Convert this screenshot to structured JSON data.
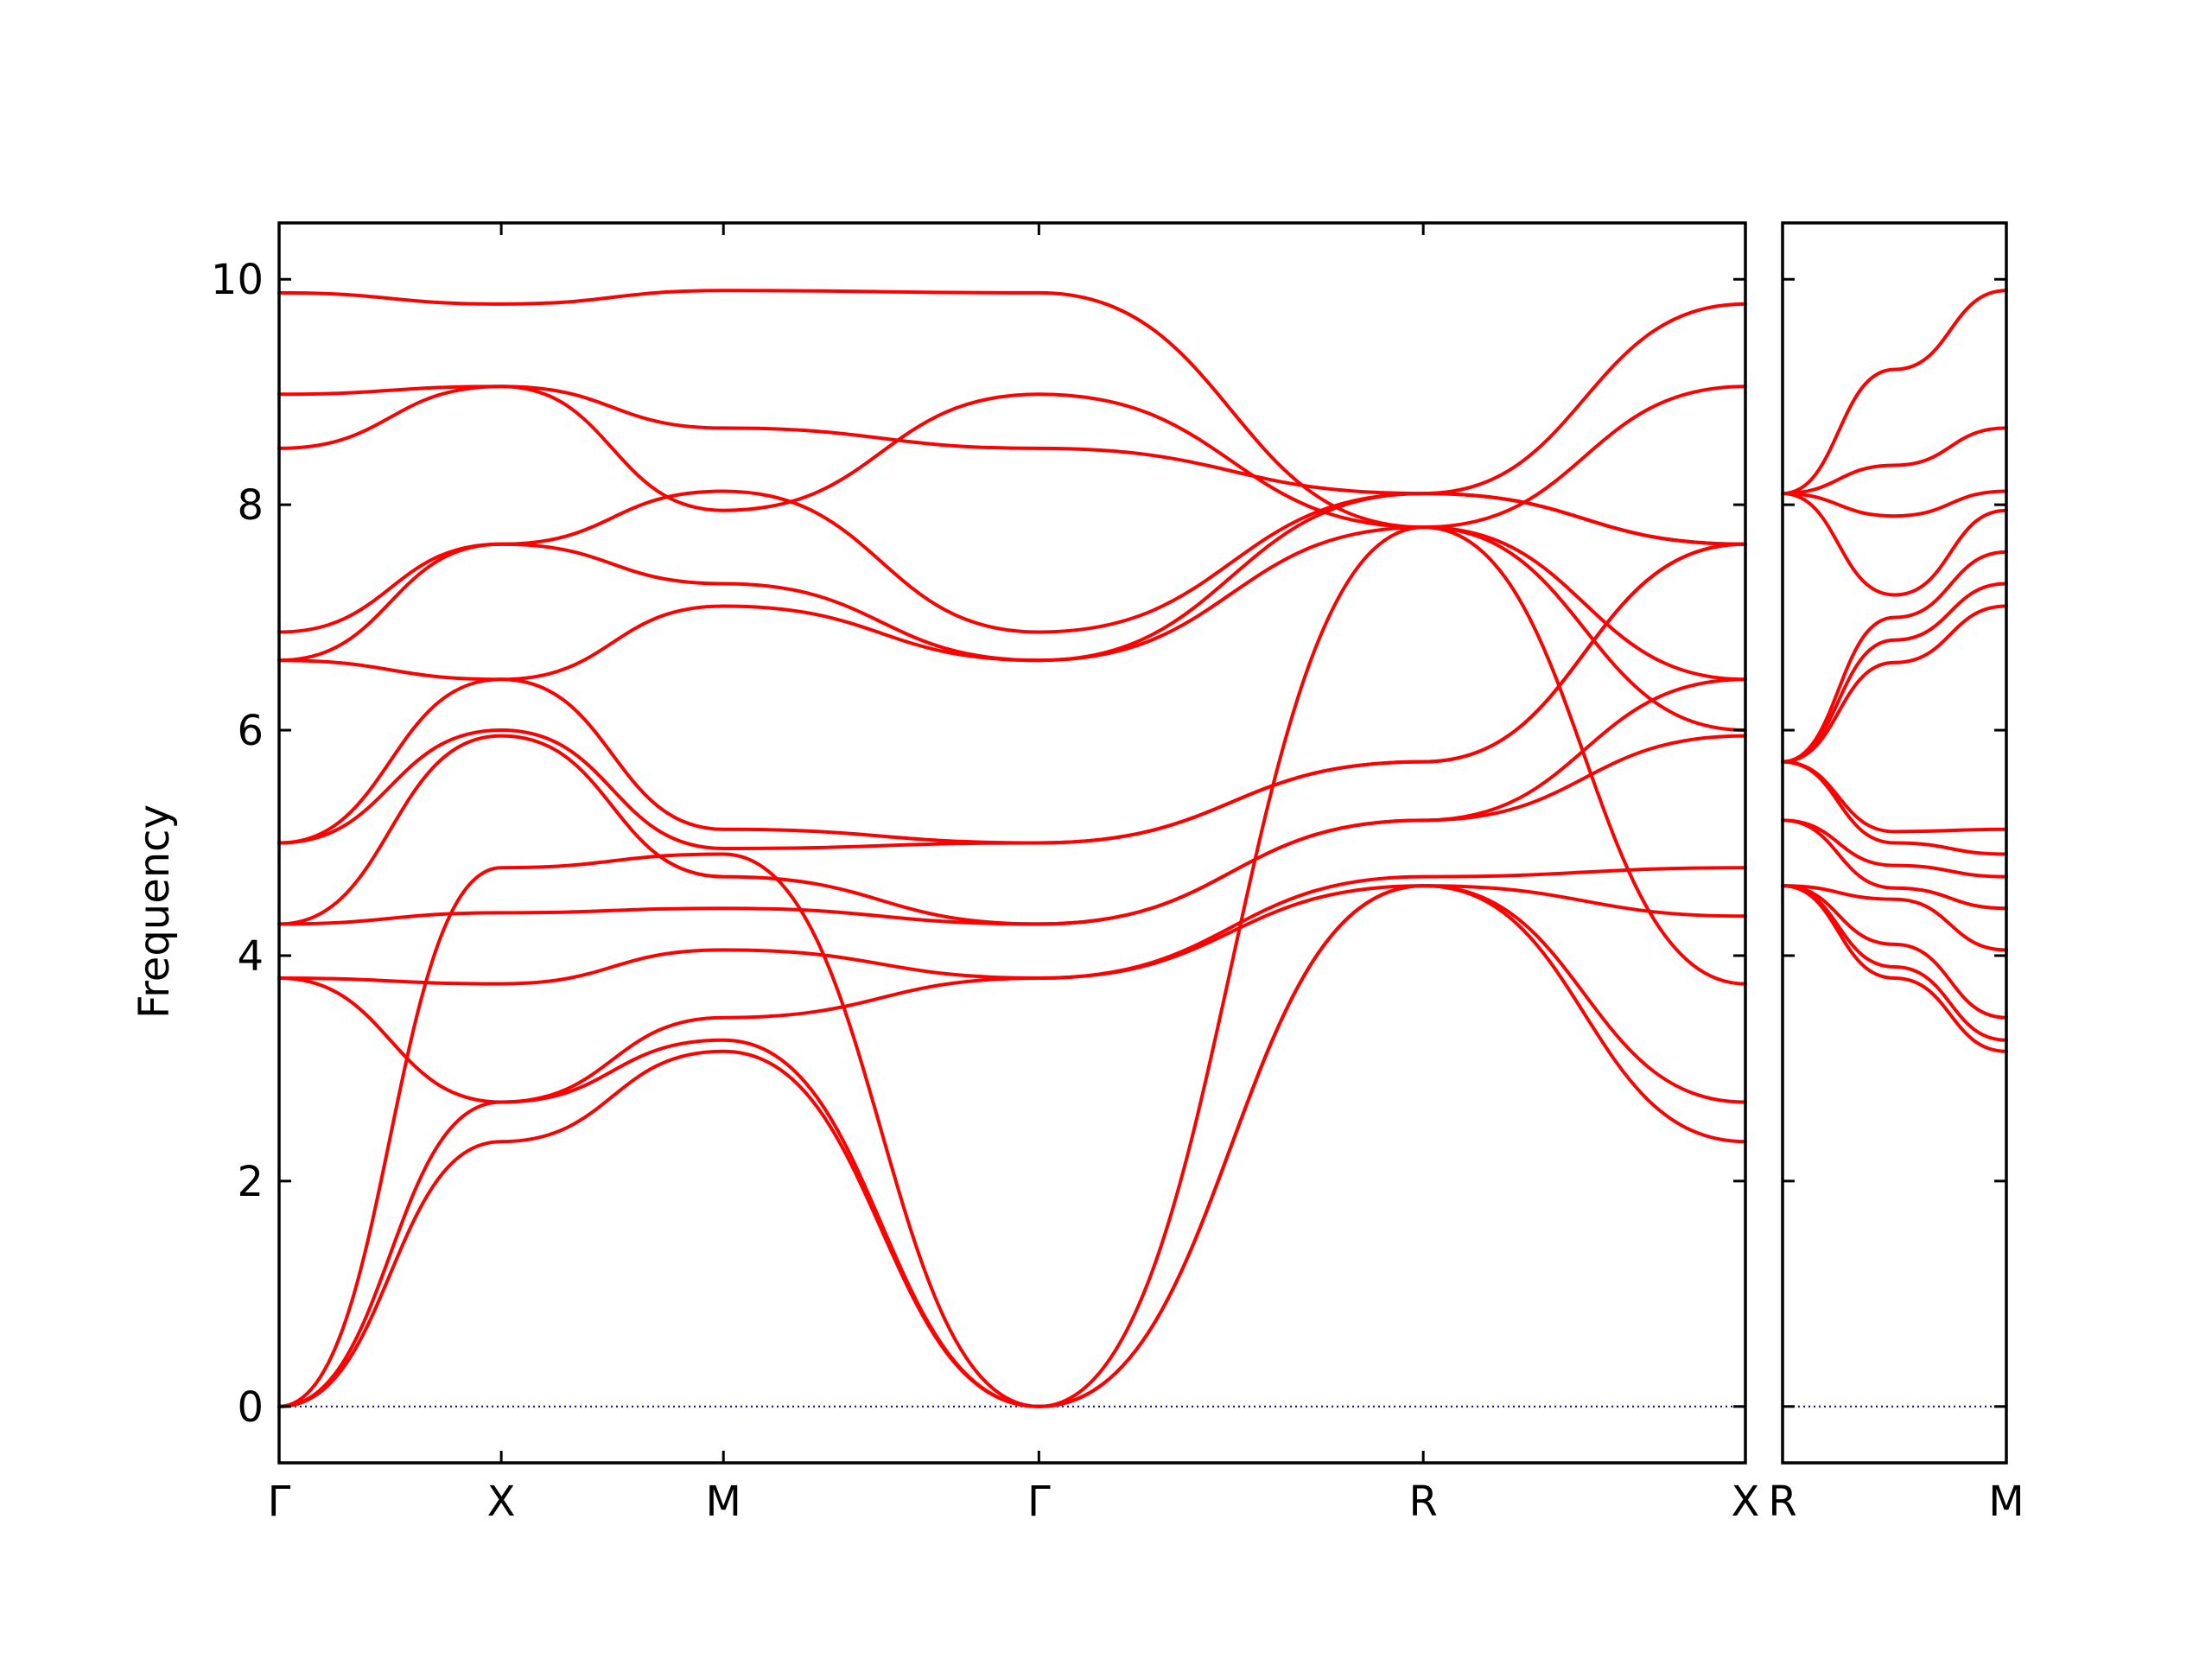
{
  "chart_data": {
    "type": "line",
    "ylabel": "Frequency",
    "ylim": [
      -0.5,
      10.5
    ],
    "yticks": [
      0,
      2,
      4,
      6,
      8,
      10
    ],
    "grid": false,
    "colors": {
      "bands": "#ff0000",
      "zero": "#0000cc",
      "axes": "#000000"
    },
    "panels": [
      {
        "xlim": [
          0,
          6.6
        ],
        "xticks": [
          {
            "x": 0,
            "label": "Γ"
          },
          {
            "x": 1.0,
            "label": "X"
          },
          {
            "x": 2.0,
            "label": "M"
          },
          {
            "x": 3.42,
            "label": "Γ"
          },
          {
            "x": 5.15,
            "label": "R"
          },
          {
            "x": 6.6,
            "label": "X"
          }
        ],
        "series": [
          {
            "x": [
              0,
              1.0,
              2.0,
              3.42,
              5.15,
              6.6
            ],
            "y": [
              0,
              2.35,
              3.15,
              0,
              4.62,
              2.35
            ]
          },
          {
            "x": [
              0,
              1.0,
              2.0,
              3.42,
              5.15,
              6.6
            ],
            "y": [
              0,
              2.7,
              3.25,
              0,
              4.62,
              2.7
            ]
          },
          {
            "x": [
              0,
              1.0,
              2.0,
              3.42,
              5.15,
              6.6
            ],
            "y": [
              0,
              4.78,
              4.9,
              0,
              7.8,
              3.75
            ]
          },
          {
            "x": [
              0,
              1.0,
              2.0,
              3.42,
              5.15,
              6.6
            ],
            "y": [
              3.8,
              2.7,
              3.45,
              3.8,
              4.62,
              4.35
            ]
          },
          {
            "x": [
              0,
              1.0,
              2.0,
              3.42,
              5.15,
              6.6
            ],
            "y": [
              3.8,
              3.75,
              4.05,
              3.8,
              4.7,
              4.78
            ]
          },
          {
            "x": [
              0,
              1.0,
              2.0,
              3.42,
              5.15,
              6.6
            ],
            "y": [
              4.28,
              4.38,
              4.42,
              4.28,
              5.2,
              5.95
            ]
          },
          {
            "x": [
              0,
              1.0,
              2.0,
              3.42,
              5.15,
              6.6
            ],
            "y": [
              4.28,
              5.95,
              4.7,
              4.28,
              5.2,
              6.45
            ]
          },
          {
            "x": [
              0,
              1.0,
              2.0,
              3.42,
              5.15,
              6.6
            ],
            "y": [
              5.0,
              6.0,
              4.95,
              5.0,
              5.72,
              7.65
            ]
          },
          {
            "x": [
              0,
              1.0,
              2.0,
              3.42,
              5.15,
              6.6
            ],
            "y": [
              5.0,
              6.45,
              5.12,
              5.0,
              5.72,
              7.65
            ]
          },
          {
            "x": [
              0,
              1.0,
              2.0,
              3.42,
              5.15,
              6.6
            ],
            "y": [
              6.62,
              6.45,
              7.1,
              6.62,
              7.8,
              9.05
            ]
          },
          {
            "x": [
              0,
              1.0,
              2.0,
              3.42,
              5.15,
              6.6
            ],
            "y": [
              6.62,
              7.65,
              7.3,
              6.62,
              8.1,
              9.78
            ]
          },
          {
            "x": [
              0,
              1.0,
              2.0,
              3.42,
              5.15,
              6.6
            ],
            "y": [
              6.87,
              7.65,
              8.12,
              6.87,
              8.1,
              7.65
            ]
          },
          {
            "x": [
              0,
              1.0,
              2.0,
              3.42,
              5.15,
              6.6
            ],
            "y": [
              8.5,
              9.05,
              8.68,
              8.5,
              8.1,
              7.65
            ]
          },
          {
            "x": [
              0,
              1.0,
              2.0,
              3.42,
              5.15,
              6.6
            ],
            "y": [
              8.98,
              9.05,
              7.95,
              8.98,
              7.8,
              6.45
            ]
          },
          {
            "x": [
              0,
              1.0,
              2.0,
              3.42,
              5.15,
              6.6
            ],
            "y": [
              9.88,
              9.78,
              9.9,
              9.88,
              7.8,
              6.0
            ]
          }
        ]
      },
      {
        "xlim": [
          0,
          1.0
        ],
        "xticks": [
          {
            "x": 0,
            "label": "R"
          },
          {
            "x": 1.0,
            "label": "M"
          }
        ],
        "series": [
          {
            "x": [
              0,
              0.5,
              1.0
            ],
            "y": [
              4.62,
              3.8,
              3.15
            ]
          },
          {
            "x": [
              0,
              0.5,
              1.0
            ],
            "y": [
              4.62,
              3.9,
              3.25
            ]
          },
          {
            "x": [
              0,
              0.5,
              1.0
            ],
            "y": [
              4.62,
              4.1,
              3.45
            ]
          },
          {
            "x": [
              0,
              0.5,
              1.0
            ],
            "y": [
              4.62,
              4.5,
              4.05
            ]
          },
          {
            "x": [
              0,
              0.5,
              1.0
            ],
            "y": [
              5.2,
              4.6,
              4.42
            ]
          },
          {
            "x": [
              0,
              0.5,
              1.0
            ],
            "y": [
              5.2,
              4.8,
              4.7
            ]
          },
          {
            "x": [
              0,
              0.5,
              1.0
            ],
            "y": [
              5.72,
              5.0,
              4.9
            ]
          },
          {
            "x": [
              0,
              0.5,
              1.0
            ],
            "y": [
              5.72,
              5.1,
              5.12
            ]
          },
          {
            "x": [
              0,
              0.5,
              1.0
            ],
            "y": [
              5.72,
              6.6,
              7.1
            ]
          },
          {
            "x": [
              0,
              0.5,
              1.0
            ],
            "y": [
              5.72,
              6.8,
              7.3
            ]
          },
          {
            "x": [
              0,
              0.5,
              1.0
            ],
            "y": [
              5.72,
              7.0,
              7.58
            ]
          },
          {
            "x": [
              0,
              0.5,
              1.0
            ],
            "y": [
              8.1,
              7.2,
              7.95
            ]
          },
          {
            "x": [
              0,
              0.5,
              1.0
            ],
            "y": [
              8.1,
              7.9,
              8.12
            ]
          },
          {
            "x": [
              0,
              0.5,
              1.0
            ],
            "y": [
              8.1,
              8.35,
              8.68
            ]
          },
          {
            "x": [
              0,
              0.5,
              1.0
            ],
            "y": [
              8.1,
              9.2,
              9.9
            ]
          }
        ]
      }
    ]
  }
}
